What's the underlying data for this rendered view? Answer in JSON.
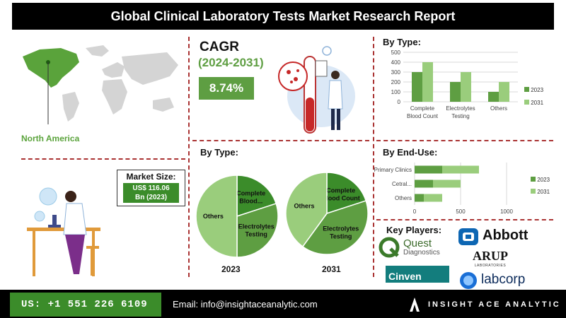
{
  "header": {
    "title": "Global Clinical Laboratory Tests Market Research Report"
  },
  "region": {
    "label": "North America"
  },
  "cagr": {
    "label": "CAGR",
    "period": "(2024-2031)",
    "value": "8.74%"
  },
  "market_size": {
    "label": "Market Size:",
    "value_line1": "US$ 116.06",
    "value_line2": "Bn (2023)"
  },
  "key_players": {
    "title": "Key Players:",
    "logos": [
      "Quest",
      "Diagnostics",
      "Abbott",
      "ARUP",
      "LABORATORIES",
      "Cinven",
      "labcorp"
    ]
  },
  "footer": {
    "phone": "US: +1 551 226 6109",
    "email": "Email: info@insightaceanalytic.com",
    "brand": "INSIGHT ACE ANALYTIC"
  },
  "colors": {
    "dark_green": "#3b8c2a",
    "mid_green": "#5e9e42",
    "light_green": "#9acd7c",
    "accent_green": "#70ad47"
  },
  "chart_data": [
    {
      "type": "bar",
      "title": "By Type:",
      "categories": [
        "Complete Blood Count",
        "Electrolytes Testing",
        "Others"
      ],
      "category_lines": [
        [
          "Complete",
          "Blood Count"
        ],
        [
          "Electrolytes",
          "Testing"
        ],
        [
          "Others"
        ]
      ],
      "series": [
        {
          "name": "2023",
          "values": [
            300,
            200,
            100
          ]
        },
        {
          "name": "2031",
          "values": [
            400,
            300,
            200
          ]
        }
      ],
      "ylim": [
        0,
        500
      ],
      "yticks": [
        "0",
        "100",
        "200",
        "300",
        "400",
        "500"
      ],
      "legend": "right"
    },
    {
      "type": "bar",
      "orientation": "horizontal",
      "title": "By End-Use:",
      "categories": [
        "Primary Clinics",
        "Cetral...",
        "Others"
      ],
      "series": [
        {
          "name": "2023",
          "values": [
            300,
            200,
            100
          ]
        },
        {
          "name": "2031",
          "values": [
            400,
            300,
            200
          ]
        }
      ],
      "xlim": [
        0,
        1000
      ],
      "xticks": [
        "0",
        "500",
        "1000"
      ],
      "legend": "right"
    },
    {
      "type": "pie",
      "title": "By Type:",
      "caption": "2023",
      "slices": [
        {
          "label_lines": [
            "Complete",
            "Blood..."
          ],
          "value": 20
        },
        {
          "label_lines": [
            "Electrolytes",
            "Testing"
          ],
          "value": 30
        },
        {
          "label_lines": [
            "Others"
          ],
          "value": 50
        }
      ]
    },
    {
      "type": "pie",
      "caption": "2031",
      "slices": [
        {
          "label_lines": [
            "Complete",
            "Blood Count"
          ],
          "value": 20
        },
        {
          "label_lines": [
            "Electrolytes",
            "Testing"
          ],
          "value": 40
        },
        {
          "label_lines": [
            "Others"
          ],
          "value": 40
        }
      ]
    }
  ]
}
